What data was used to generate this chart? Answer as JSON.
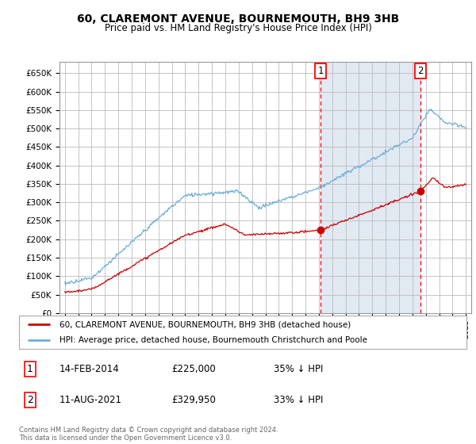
{
  "title": "60, CLAREMONT AVENUE, BOURNEMOUTH, BH9 3HB",
  "subtitle": "Price paid vs. HM Land Registry's House Price Index (HPI)",
  "ylabel_values": [
    "£0",
    "£50K",
    "£100K",
    "£150K",
    "£200K",
    "£250K",
    "£300K",
    "£350K",
    "£400K",
    "£450K",
    "£500K",
    "£550K",
    "£600K",
    "£650K"
  ],
  "ylim": [
    0,
    680000
  ],
  "yticks": [
    0,
    50000,
    100000,
    150000,
    200000,
    250000,
    300000,
    350000,
    400000,
    450000,
    500000,
    550000,
    600000,
    650000
  ],
  "x_start_year": 1995,
  "x_end_year": 2025,
  "red_line_color": "#cc0000",
  "blue_line_color": "#6baed6",
  "grid_color": "#bbbbbb",
  "bg_color": "#dce6f1",
  "plot_bg": "#ffffff",
  "legend_label_red": "60, CLAREMONT AVENUE, BOURNEMOUTH, BH9 3HB (detached house)",
  "legend_label_blue": "HPI: Average price, detached house, Bournemouth Christchurch and Poole",
  "event1_year": 2014.12,
  "event1_price": 225000,
  "event2_year": 2021.62,
  "event2_price": 329950,
  "footnote": "Contains HM Land Registry data © Crown copyright and database right 2024.\nThis data is licensed under the Open Government Licence v3.0.",
  "table_rows": [
    {
      "num": "1",
      "date": "14-FEB-2014",
      "price": "£225,000",
      "hpi": "35% ↓ HPI"
    },
    {
      "num": "2",
      "date": "11-AUG-2021",
      "price": "£329,950",
      "hpi": "33% ↓ HPI"
    }
  ]
}
